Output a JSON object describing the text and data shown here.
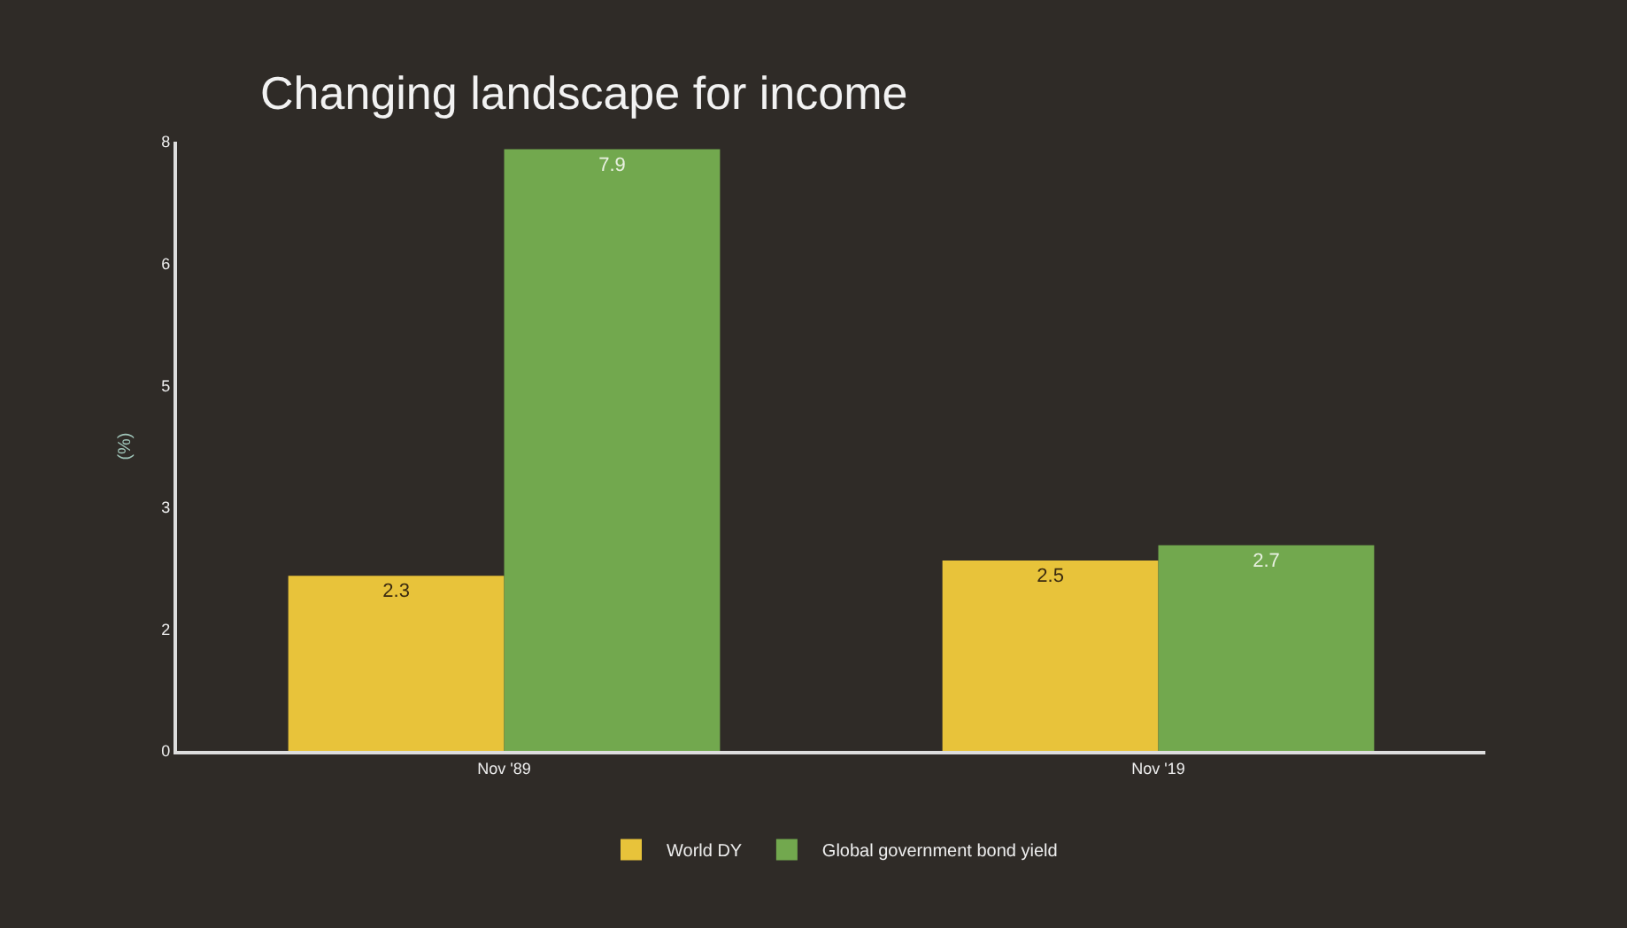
{
  "chart_data": {
    "type": "bar",
    "title": "Changing landscape for income",
    "ylabel": "(%)",
    "categories": [
      "Nov '89",
      "Nov '19"
    ],
    "series": [
      {
        "name": "World DY",
        "color": "#e8c33a",
        "values": [
          2.3,
          2.5
        ]
      },
      {
        "name": "Global government bond yield",
        "color": "#72a84e",
        "values": [
          7.9,
          2.7
        ]
      }
    ],
    "ylim": [
      0,
      8
    ],
    "yticks": [
      0,
      {
        "value": 1.6,
        "label": "2"
      },
      {
        "value": 3.2,
        "label": "3"
      },
      {
        "value": 4.8,
        "label": "5"
      },
      {
        "value": 6.4,
        "label": "6"
      },
      8
    ],
    "data_labels": true,
    "grid": false,
    "legend": "bottom"
  }
}
